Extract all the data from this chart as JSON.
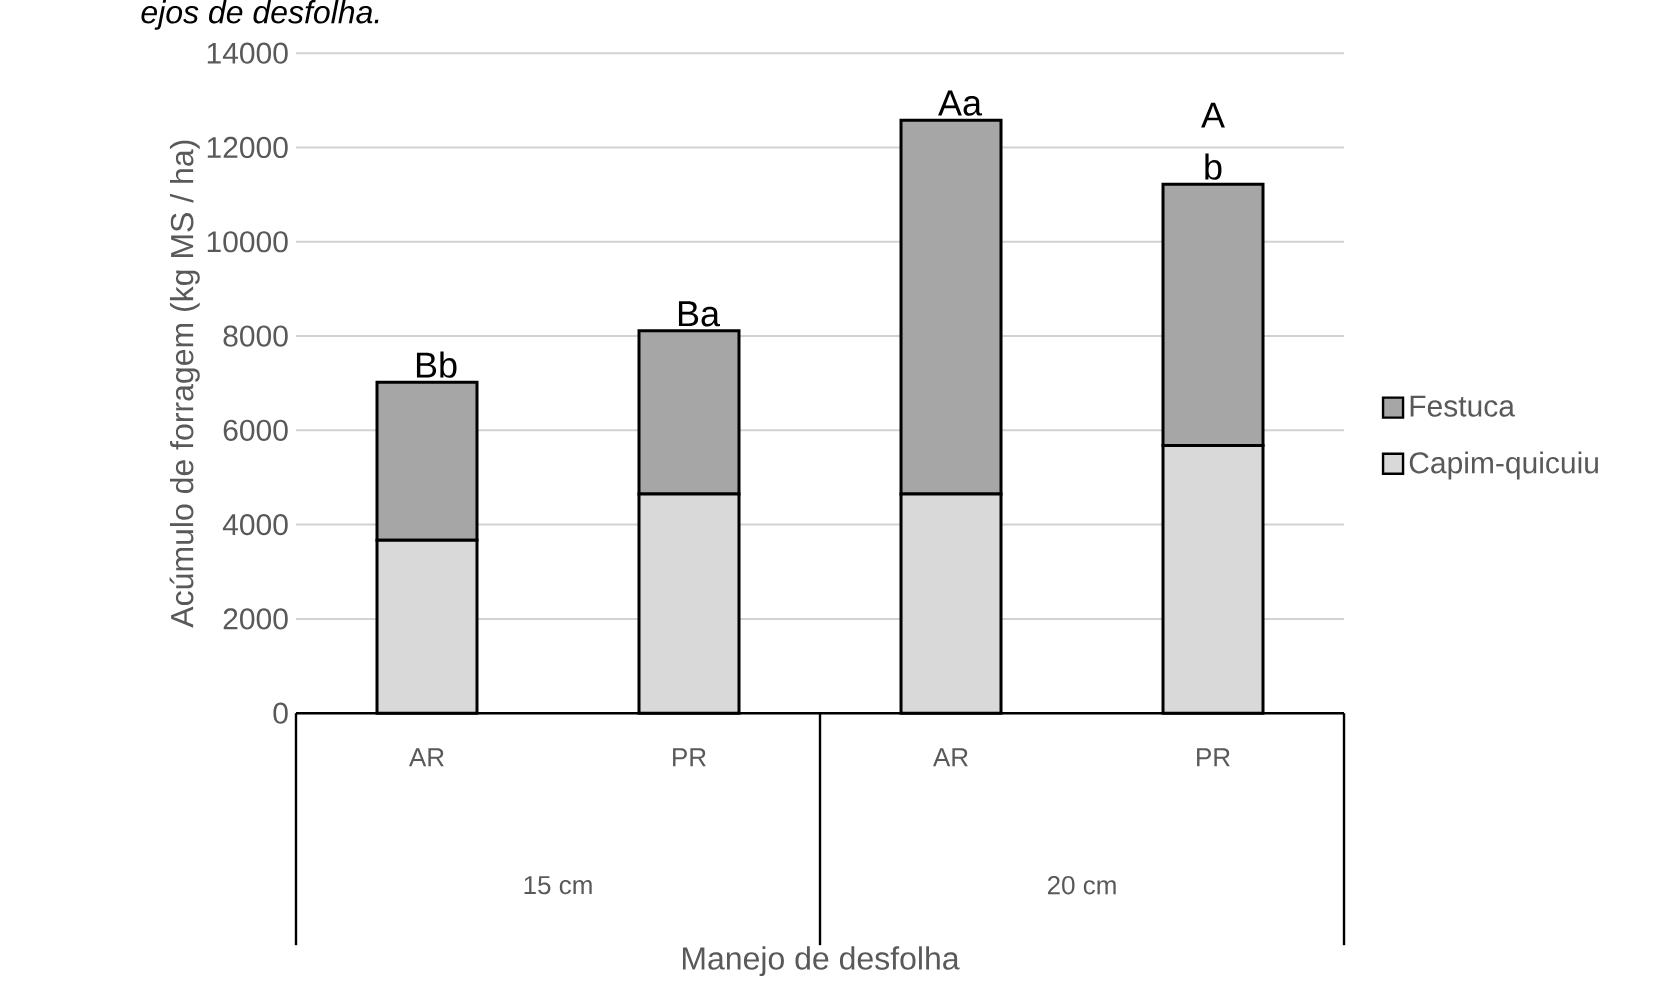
{
  "chart_data": {
    "type": "bar",
    "stacked": true,
    "ylabel": "Acúmulo de forragem (kg MS / ha)",
    "categories": [
      "AR",
      "PR",
      "AR",
      "PR"
    ],
    "series": [
      {
        "name": "Capim-quicuiu",
        "color": "#d9d9d9",
        "values": [
          3670,
          4650,
          4650,
          5680
        ]
      },
      {
        "name": "Festuca",
        "color": "#a6a6a6",
        "values": [
          3350,
          3460,
          7930,
          5540
        ],
        "value_labels": [
          "Bb",
          "Ba",
          "Aa",
          "A b"
        ]
      }
    ],
    "ylim": [
      0,
      14000
    ],
    "yticks": [
      0,
      2000,
      4000,
      6000,
      8000,
      10000,
      12000,
      14000
    ],
    "grid": "y",
    "legend": "right",
    "annotations": [
      "ejos de desfolha.",
      "15 cm",
      "20 cm",
      "Manejo de desfolha"
    ]
  }
}
